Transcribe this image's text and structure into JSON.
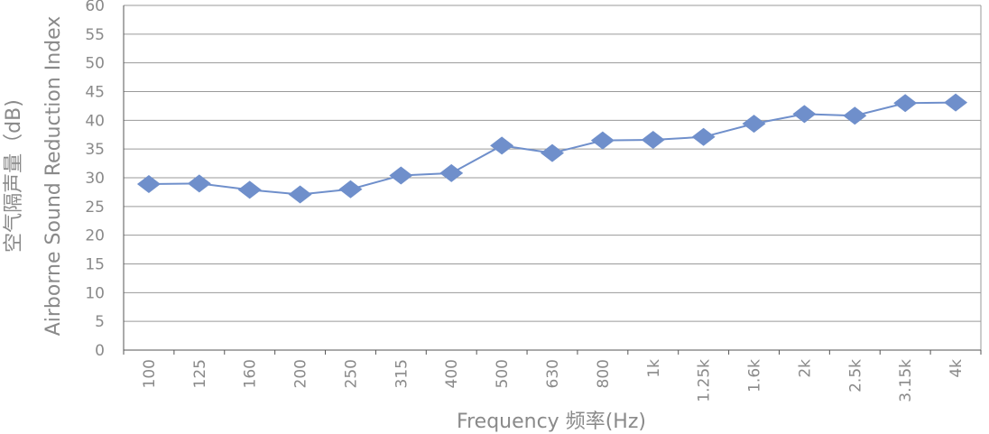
{
  "chart_data": {
    "type": "line",
    "categories": [
      "100",
      "125",
      "160",
      "200",
      "250",
      "315",
      "400",
      "500",
      "630",
      "800",
      "1k",
      "1.25k",
      "1.6k",
      "2k",
      "2.5k",
      "3.15k",
      "4k"
    ],
    "series": [
      {
        "values": [
          28.9,
          29.0,
          27.9,
          27.1,
          28.0,
          30.4,
          30.8,
          35.6,
          34.3,
          36.5,
          36.6,
          37.1,
          39.4,
          41.1,
          40.8,
          43.0,
          43.1
        ]
      }
    ],
    "ylim": [
      0,
      60
    ],
    "yticks": [
      0,
      5,
      10,
      15,
      20,
      25,
      30,
      35,
      40,
      45,
      50,
      55,
      60
    ],
    "xlabel": "Frequency 频率(Hz)",
    "ylabel_line1": "空气隔声量（dB)",
    "ylabel_line2": "Airborne Sound Reduction Index",
    "grid": true,
    "colors": {
      "series": "#6f8fcb",
      "grid": "#9a9a9a",
      "axis": "#555555",
      "text": "#8a8a8a"
    }
  }
}
